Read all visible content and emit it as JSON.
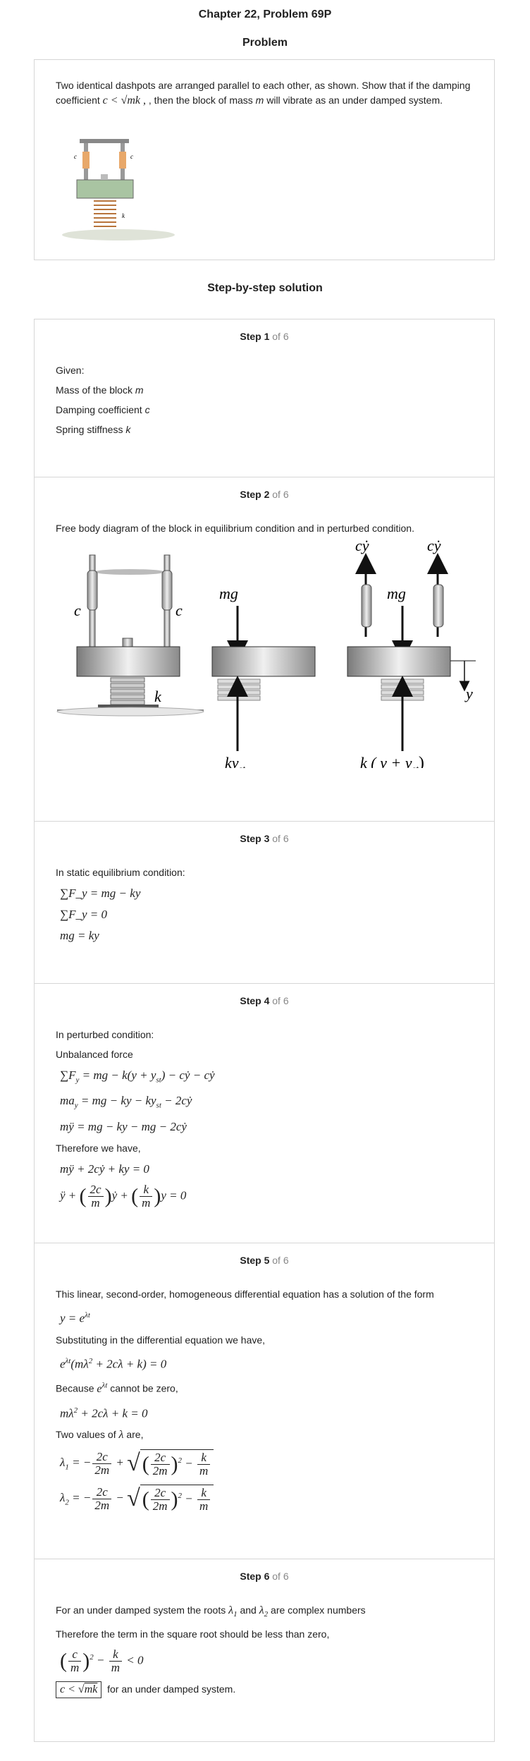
{
  "header": {
    "title": "Chapter 22, Problem 69P"
  },
  "problem": {
    "heading": "Problem",
    "text_before": "Two identical dashpots are arranged parallel to each other, as shown. Show that if the damping coefficient",
    "condition": "c < √mk ,",
    "text_middle": ", then the block of mass",
    "mass_symbol": "m",
    "text_after": "will vibrate as an under damped system.",
    "figure_labels": {
      "c_left": "c",
      "c_right": "c",
      "k": "k"
    }
  },
  "solution": {
    "heading": "Step-by-step solution"
  },
  "steps": [
    {
      "num": "Step 1",
      "of": "of 6",
      "lines": [
        "Given:",
        "Mass of the block",
        "Damping coefficient",
        "Spring stiffness"
      ],
      "symbols": [
        "m",
        "c",
        "k"
      ]
    },
    {
      "num": "Step 2",
      "of": "of 6",
      "text": "Free body diagram of the block in equilibrium condition and in perturbed condition.",
      "fbd": {
        "c1": "c",
        "c2": "c",
        "k": "k",
        "mg1": "mg",
        "kyst": "ky",
        "st": "st",
        "cydot1": "cẏ",
        "cydot2": "cẏ",
        "mg2": "mg",
        "y": "y",
        "kyyst": "k ( y + y",
        "st2": "st",
        "close": ")"
      }
    },
    {
      "num": "Step 3",
      "of": "of 6",
      "text": "In static equilibrium condition:",
      "eq1": "∑F_y = mg − ky",
      "eq2": "∑F_y = 0",
      "eq3": "mg = ky"
    },
    {
      "num": "Step 4",
      "of": "of 6",
      "text1": "In perturbed condition:",
      "text2": "Unbalanced force",
      "text3": "Therefore we have,"
    },
    {
      "num": "Step 5",
      "of": "of 6",
      "text1": "This linear, second-order, homogeneous differential equation has a solution of the form",
      "text2": "Substituting in the differential equation we have,",
      "text3a": "Because",
      "text3b": "cannot be zero,",
      "text4a": "Two values of",
      "text4b": "are,"
    },
    {
      "num": "Step 6",
      "of": "of 6",
      "text1a": "For an under damped system the roots",
      "text1b": "and",
      "text1c": "are complex numbers",
      "text2": "Therefore the term in the square root should be less than zero,",
      "text3": "for an under damped system."
    }
  ]
}
